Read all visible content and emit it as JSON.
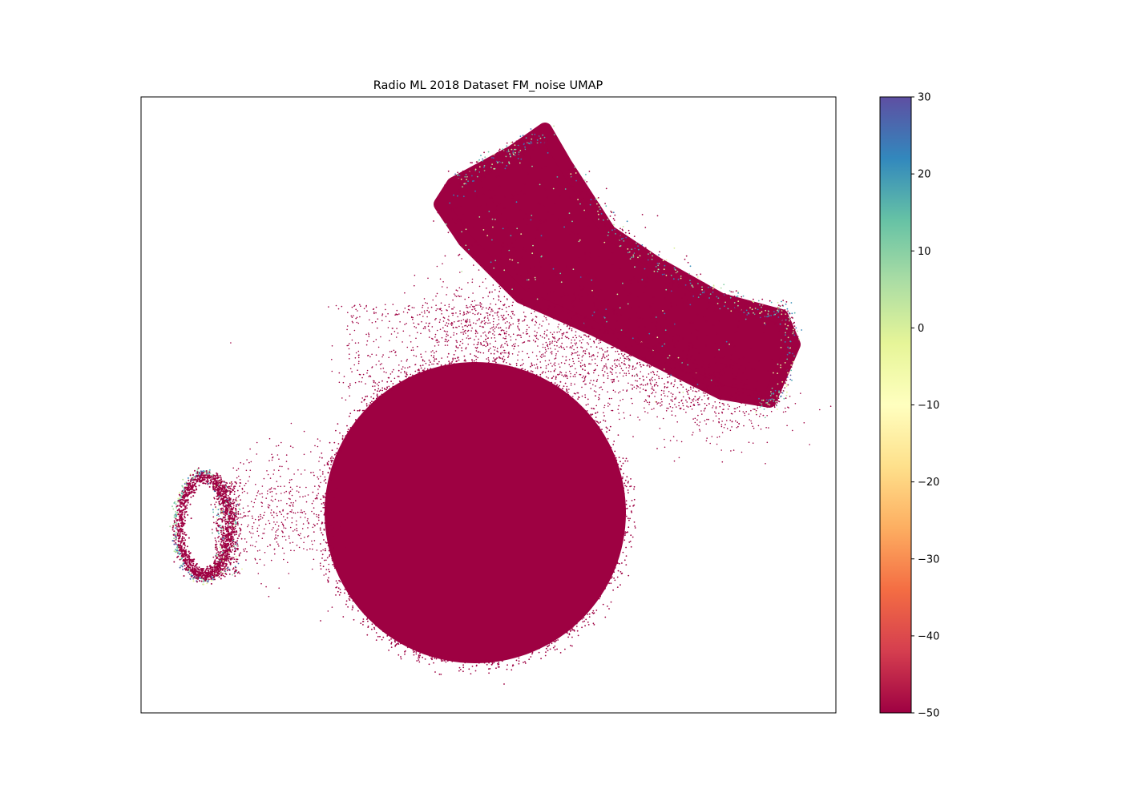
{
  "chart_data": {
    "type": "scatter",
    "title": "Radio ML 2018 Dataset FM_noise UMAP",
    "xlabel": "",
    "ylabel": "",
    "x_ticks": [],
    "y_ticks": [],
    "colormap": "Spectral",
    "colorbar": {
      "range": [
        -50,
        30
      ],
      "ticks": [
        30,
        20,
        10,
        0,
        -10,
        -20,
        -30,
        -40,
        -50
      ],
      "tick_labels": [
        "30",
        "20",
        "10",
        "0",
        "−10",
        "−20",
        "−30",
        "−40",
        "−50"
      ],
      "colors": [
        "#9e0142",
        "#d53e4f",
        "#f46d43",
        "#fdae61",
        "#fee08b",
        "#ffffbf",
        "#e6f598",
        "#abdda4",
        "#66c2a5",
        "#3288bd",
        "#5e4fa2"
      ]
    },
    "dominant_point_color": "#9e0142",
    "clusters": [
      {
        "shape": "filled-disc",
        "dominant_value": -50
      },
      {
        "shape": "curved-band",
        "value_mix": "mostly -50 with scattered 0 to 30 values along edges"
      },
      {
        "shape": "ring",
        "value_mix": "-50 with 0 to 30 values along the outer edge"
      },
      {
        "shape": "sparse-bridge",
        "dominant_value": -50
      }
    ],
    "grid": false,
    "legend": "none"
  }
}
